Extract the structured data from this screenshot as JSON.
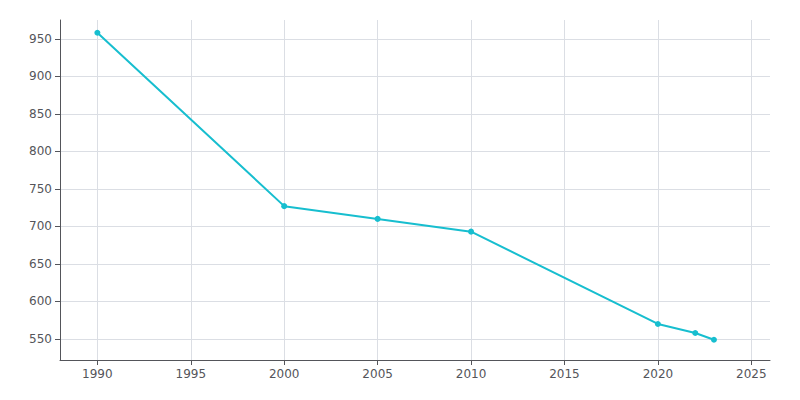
{
  "chart_data": {
    "type": "line",
    "x": [
      1990,
      2000,
      2005,
      2010,
      2020,
      2022,
      2023
    ],
    "values": [
      958,
      727,
      710,
      693,
      570,
      558,
      549
    ],
    "color": "#17becf",
    "marker": "circle",
    "xlim": [
      1988,
      2026
    ],
    "ylim": [
      522,
      975
    ],
    "xticks": [
      1990,
      1995,
      2000,
      2005,
      2010,
      2015,
      2020,
      2025
    ],
    "yticks": [
      550,
      600,
      650,
      700,
      750,
      800,
      850,
      900,
      950
    ],
    "grid": true
  }
}
